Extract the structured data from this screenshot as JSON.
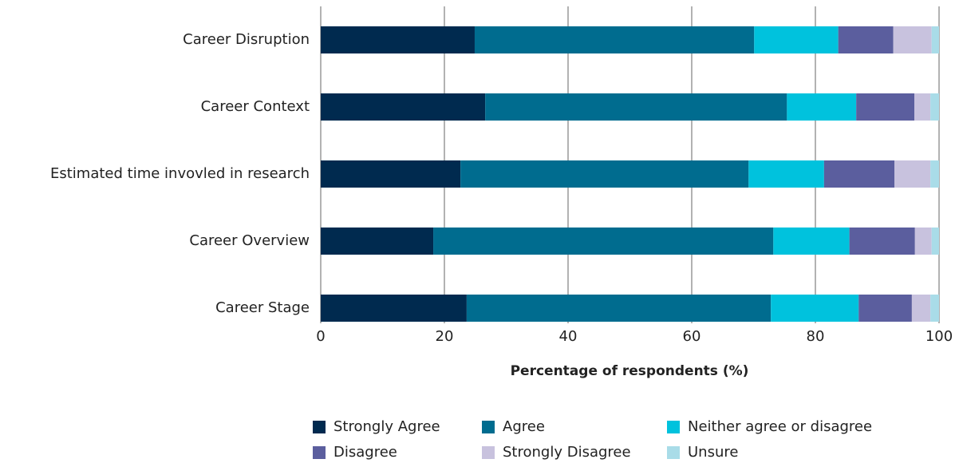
{
  "chart_data": {
    "type": "stacked_barh",
    "xlabel": "Percentage of respondents (%)",
    "categories": [
      "Career Disruption",
      "Career Context",
      "Estimated time invovled in research",
      "Career Overview",
      "Career Stage"
    ],
    "series": [
      {
        "name": "Strongly Agree",
        "color": "#002a4f",
        "values": [
          24.9,
          26.6,
          22.6,
          18.2,
          23.6
        ]
      },
      {
        "name": "Agree",
        "color": "#006c8f",
        "values": [
          45.2,
          48.8,
          46.6,
          55.0,
          49.2
        ]
      },
      {
        "name": "Neither agree or disagree",
        "color": "#00c2dd",
        "values": [
          13.6,
          11.2,
          12.2,
          12.3,
          14.2
        ]
      },
      {
        "name": "Disagree",
        "color": "#5b5e9e",
        "values": [
          8.9,
          9.4,
          11.4,
          10.6,
          8.6
        ]
      },
      {
        "name": "Strongly Disagree",
        "color": "#c8c2de",
        "values": [
          6.2,
          2.6,
          5.8,
          2.7,
          3.0
        ]
      },
      {
        "name": "Unsure",
        "color": "#a9dce8",
        "values": [
          1.2,
          1.4,
          1.4,
          1.2,
          1.4
        ]
      }
    ],
    "xlim": [
      0,
      100
    ],
    "xticks": [
      0,
      20,
      40,
      60,
      80,
      100
    ],
    "grid": true
  }
}
